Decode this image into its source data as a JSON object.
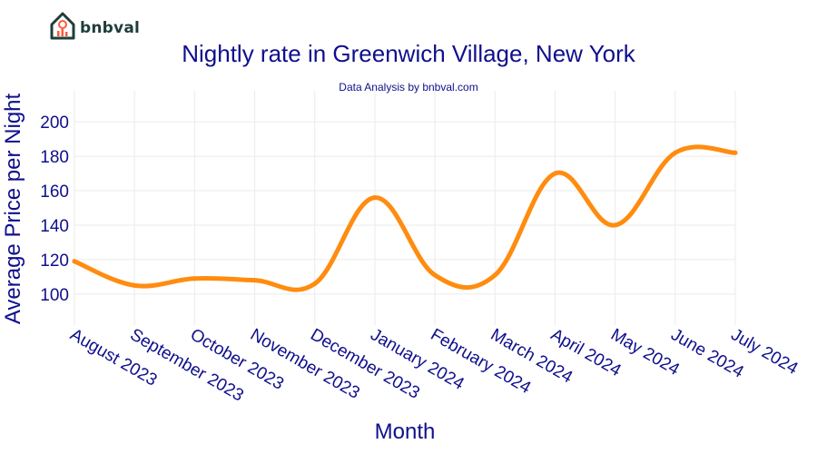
{
  "brand": {
    "name": "bnbval",
    "logo_icon": "house-chart-icon"
  },
  "chart_data": {
    "type": "line",
    "title": "Nightly rate in Greenwich Village, New York",
    "subtitle": "Data Analysis by bnbval.com",
    "xlabel": "Month",
    "ylabel": "Average Price per Night",
    "categories": [
      "August 2023",
      "September 2023",
      "October 2023",
      "November 2023",
      "December 2023",
      "January 2024",
      "February 2024",
      "March 2024",
      "April 2024",
      "May 2024",
      "June 2024",
      "July 2024"
    ],
    "series": [
      {
        "values": [
          119,
          105,
          109,
          108,
          106,
          156,
          111,
          111,
          170,
          140,
          182,
          182
        ],
        "color": "#ff8c0f"
      }
    ],
    "yticks": [
      100,
      120,
      140,
      160,
      180,
      200
    ],
    "ylim": [
      82,
      218
    ],
    "grid": true,
    "line_shape": "smooth"
  }
}
